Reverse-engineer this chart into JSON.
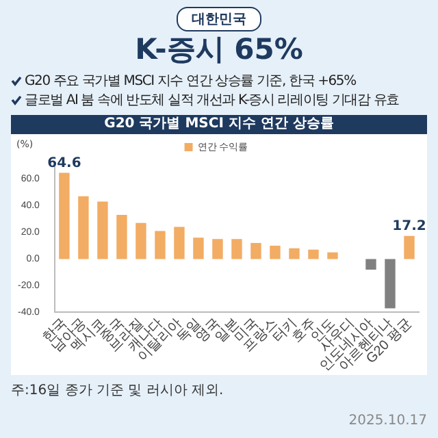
{
  "chart_data": {
    "type": "bar",
    "title": "K-증시 65%",
    "subtitle": "G20 국가별 MSCI 지수 연간 상승률",
    "ylabel": "(%)",
    "annotations": [
      "대한민국",
      "G20 주요 국가별 MSCI 지수 연간 상승률 기준, 한국 +65%",
      "글로벌 AI 붐 속에 반도체 실적 개선과 K-증시 리레이팅 기대감 유효",
      "주:16일 종가 기준 및 러시아 제외.",
      "2025.10.17"
    ],
    "categories": [
      "한국",
      "남아공",
      "멕시코",
      "중국",
      "브라질",
      "캐나다",
      "이탈리아",
      "독일",
      "영국",
      "일본",
      "미국",
      "프랑스",
      "터키",
      "호주",
      "인도",
      "사우디",
      "인도네시아",
      "아르헨티나",
      "G20 평균"
    ],
    "series": [
      {
        "name": "연간 수익률",
        "color": "#f2ac64",
        "colors": [
          "#f2ac64",
          "#f2ac64",
          "#f2ac64",
          "#f2ac64",
          "#f2ac64",
          "#f2ac64",
          "#f2ac64",
          "#f2ac64",
          "#f2ac64",
          "#f2ac64",
          "#f2ac64",
          "#f2ac64",
          "#f2ac64",
          "#f2ac64",
          "#f2ac64",
          "#f2ac64",
          "#808080",
          "#808080",
          "#f2ac64"
        ],
        "values": [
          64.6,
          47,
          43,
          33,
          27,
          21,
          24,
          16,
          15,
          15,
          12,
          10,
          8,
          7,
          5,
          0,
          -8,
          -37,
          17.2
        ],
        "value_labels": [
          "64.6",
          null,
          null,
          null,
          null,
          null,
          null,
          null,
          null,
          null,
          null,
          null,
          null,
          null,
          null,
          null,
          null,
          null,
          "17.2"
        ]
      }
    ],
    "ylim": [
      -40,
      70
    ],
    "yticks": [
      {
        "value": -40,
        "label": "-40.0"
      },
      {
        "value": -20,
        "label": "-20.0"
      },
      {
        "value": 0,
        "label": "0.0"
      },
      {
        "value": 20,
        "label": "20.0"
      },
      {
        "value": 40,
        "label": "40.0"
      },
      {
        "value": 60,
        "label": "60.0"
      }
    ],
    "grid": false,
    "legend": "top"
  }
}
